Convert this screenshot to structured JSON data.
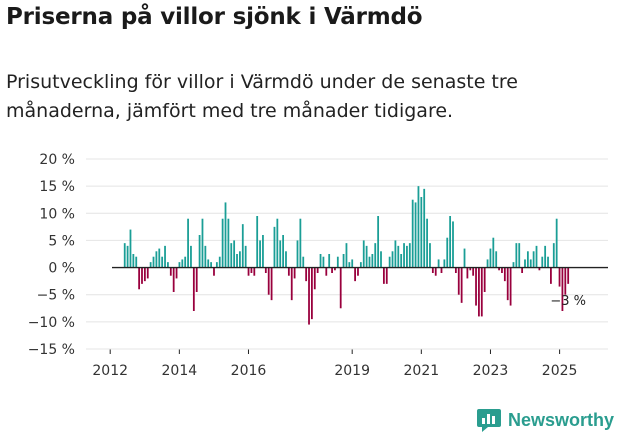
{
  "header": {
    "title": "Priserna på villor sjönk i Värmdö",
    "subtitle": "Prisutveckling för villor i Värmdö under de senaste tre månaderna, jämfört med tre månader tidigare."
  },
  "brand": {
    "name": "Newsworthy"
  },
  "colors": {
    "positive": "#1a9e96",
    "negative": "#99003d",
    "grid": "#e4e4e4",
    "axis": "#222222"
  },
  "chart_data": {
    "type": "bar",
    "title": "Priserna på villor sjönk i Värmdö",
    "ylabel": "",
    "xlabel": "",
    "ylim": [
      -15,
      20
    ],
    "yticks": [
      20,
      15,
      10,
      5,
      0,
      -5,
      -10,
      -15
    ],
    "ytick_labels": [
      "20 %",
      "15 %",
      "10 %",
      "5 %",
      "0 %",
      "−5 %",
      "−10 %",
      "−15 %"
    ],
    "xlim": [
      2011.3,
      2026.4
    ],
    "xticks": [
      2012,
      2014,
      2016,
      2019,
      2021,
      2023,
      2025
    ],
    "xtick_labels": [
      "2012",
      "2014",
      "2016",
      "2019",
      "2021",
      "2023",
      "2025"
    ],
    "start": 2012.42,
    "step": 0.0833,
    "values": [
      4.5,
      4,
      7,
      2.5,
      2,
      -4,
      -3,
      -2.5,
      -2,
      1,
      2,
      3,
      3.5,
      2,
      4,
      1,
      -1.5,
      -4.5,
      -2,
      1,
      1.5,
      2,
      9,
      4,
      -8,
      -4.5,
      6,
      9,
      4,
      1.5,
      1,
      -1.5,
      1,
      2,
      9,
      12,
      9,
      4.5,
      5,
      2.5,
      3,
      8,
      4,
      -1.5,
      -1,
      -1.5,
      9.5,
      5,
      6,
      -1,
      -5,
      -6,
      7.5,
      9,
      5,
      6,
      3,
      -1.5,
      -6,
      -2,
      5,
      9,
      2,
      -2.5,
      -10.5,
      -9.5,
      -4,
      -1,
      2.5,
      2,
      -1.5,
      2.5,
      -1,
      -0.5,
      2,
      -7.5,
      2.5,
      4.5,
      1,
      1.5,
      -2.5,
      -1.5,
      1,
      5,
      4,
      2,
      2.5,
      4.5,
      9.5,
      3,
      -3,
      -3,
      2,
      3,
      5,
      4,
      2.5,
      4.5,
      4,
      4.5,
      12.5,
      12,
      15,
      13,
      14.5,
      9,
      4.5,
      -1,
      -1.5,
      1.5,
      -1,
      1.5,
      5.5,
      9.5,
      8.5,
      -1,
      -5,
      -6.5,
      3.5,
      -2,
      -0.5,
      -1.5,
      -7,
      -9,
      -9,
      -4.5,
      1.5,
      3.5,
      5.5,
      3,
      -0.5,
      -1,
      -2.5,
      -6,
      -7,
      1,
      4.5,
      4.5,
      -1,
      1.5,
      3,
      1.5,
      3,
      4,
      -0.5,
      2,
      4,
      2,
      -3,
      4.5,
      9,
      -3.5,
      -8,
      -5,
      -3
    ],
    "annotations": [
      {
        "label": "−3 %",
        "anchor": "last-bar"
      }
    ]
  }
}
